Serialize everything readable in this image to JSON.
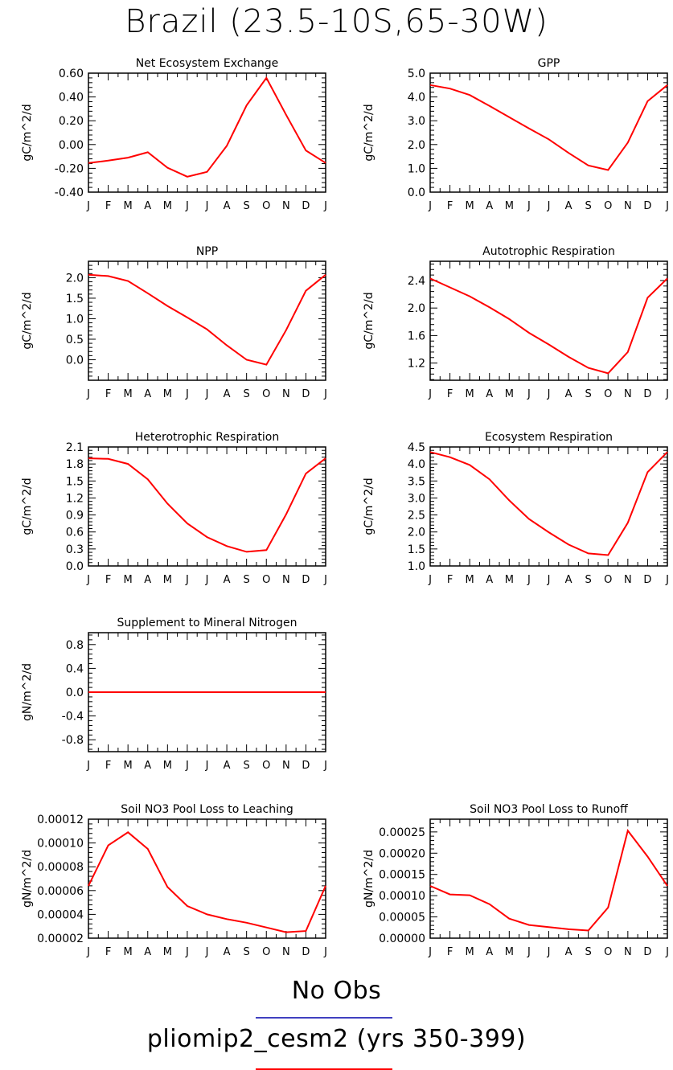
{
  "figure_title": "Brazil (23.5-10S,65-30W)",
  "legend": {
    "obs_label": "No Obs",
    "model_label": "pliomip2_cesm2 (yrs 350-399)",
    "obs_color": "#4040c0",
    "model_color": "#ff0000"
  },
  "chart_data": [
    {
      "type": "line",
      "title": "Net Ecosystem Exchange",
      "ylabel": "gC/m^2/d",
      "categories": [
        "J",
        "F",
        "M",
        "A",
        "M",
        "J",
        "J",
        "A",
        "S",
        "O",
        "N",
        "D",
        "J"
      ],
      "ylim": [
        -0.4,
        0.6
      ],
      "yticks": [
        "-0.40",
        "-0.20",
        "0.00",
        "0.20",
        "0.40",
        "0.60"
      ],
      "ytick_values": [
        -0.4,
        -0.2,
        0.0,
        0.2,
        0.4,
        0.6
      ],
      "series": [
        {
          "color": "#ff0000",
          "values": [
            -0.155,
            -0.135,
            -0.11,
            -0.065,
            -0.195,
            -0.27,
            -0.23,
            -0.01,
            0.33,
            0.56,
            0.25,
            -0.05,
            -0.155
          ]
        }
      ]
    },
    {
      "type": "line",
      "title": "GPP",
      "ylabel": "gC/m^2/d",
      "categories": [
        "J",
        "F",
        "M",
        "A",
        "M",
        "J",
        "J",
        "A",
        "S",
        "O",
        "N",
        "D",
        "J"
      ],
      "ylim": [
        0.0,
        5.0
      ],
      "yticks": [
        "0.0",
        "1.0",
        "2.0",
        "3.0",
        "4.0",
        "5.0"
      ],
      "ytick_values": [
        0,
        1,
        2,
        3,
        4,
        5
      ],
      "series": [
        {
          "color": "#ff0000",
          "values": [
            4.5,
            4.35,
            4.08,
            3.62,
            3.15,
            2.68,
            2.22,
            1.65,
            1.12,
            0.93,
            2.08,
            3.82,
            4.5
          ]
        }
      ]
    },
    {
      "type": "line",
      "title": "NPP",
      "ylabel": "gC/m^2/d",
      "categories": [
        "J",
        "F",
        "M",
        "A",
        "M",
        "J",
        "J",
        "A",
        "S",
        "O",
        "N",
        "D",
        "J"
      ],
      "ylim": [
        -0.5,
        2.4
      ],
      "yticks": [
        "0.0",
        "0.5",
        "1.0",
        "1.5",
        "2.0"
      ],
      "ytick_values": [
        0,
        0.5,
        1.0,
        1.5,
        2.0
      ],
      "series": [
        {
          "color": "#ff0000",
          "values": [
            2.07,
            2.04,
            1.92,
            1.62,
            1.31,
            1.03,
            0.74,
            0.35,
            0.0,
            -0.12,
            0.72,
            1.68,
            2.07
          ]
        }
      ]
    },
    {
      "type": "line",
      "title": "Autotrophic Respiration",
      "ylabel": "gC/m^2/d",
      "categories": [
        "J",
        "F",
        "M",
        "A",
        "M",
        "J",
        "J",
        "A",
        "S",
        "O",
        "N",
        "D",
        "J"
      ],
      "ylim": [
        0.95,
        2.68
      ],
      "yticks": [
        "1.2",
        "1.6",
        "2.0",
        "2.4"
      ],
      "ytick_values": [
        1.2,
        1.6,
        2.0,
        2.4
      ],
      "series": [
        {
          "color": "#ff0000",
          "values": [
            2.43,
            2.3,
            2.17,
            2.01,
            1.84,
            1.64,
            1.47,
            1.29,
            1.13,
            1.05,
            1.36,
            2.15,
            2.43
          ]
        }
      ]
    },
    {
      "type": "line",
      "title": "Heterotrophic Respiration",
      "ylabel": "gC/m^2/d",
      "categories": [
        "J",
        "F",
        "M",
        "A",
        "M",
        "J",
        "J",
        "A",
        "S",
        "O",
        "N",
        "D",
        "J"
      ],
      "ylim": [
        0.0,
        2.1
      ],
      "yticks": [
        "0.0",
        "0.3",
        "0.6",
        "0.9",
        "1.2",
        "1.5",
        "1.8",
        "2.1"
      ],
      "ytick_values": [
        0,
        0.3,
        0.6,
        0.9,
        1.2,
        1.5,
        1.8,
        2.1
      ],
      "series": [
        {
          "color": "#ff0000",
          "values": [
            1.9,
            1.89,
            1.8,
            1.53,
            1.1,
            0.75,
            0.51,
            0.35,
            0.25,
            0.28,
            0.91,
            1.63,
            1.9
          ]
        }
      ]
    },
    {
      "type": "line",
      "title": "Ecosystem Respiration",
      "ylabel": "gC/m^2/d",
      "categories": [
        "J",
        "F",
        "M",
        "A",
        "M",
        "J",
        "J",
        "A",
        "S",
        "O",
        "N",
        "D",
        "J"
      ],
      "ylim": [
        1.0,
        4.5
      ],
      "yticks": [
        "1.0",
        "1.5",
        "2.0",
        "2.5",
        "3.0",
        "3.5",
        "4.0",
        "4.5"
      ],
      "ytick_values": [
        1.0,
        1.5,
        2.0,
        2.5,
        3.0,
        3.5,
        4.0,
        4.5
      ],
      "series": [
        {
          "color": "#ff0000",
          "values": [
            4.35,
            4.2,
            3.97,
            3.55,
            2.93,
            2.38,
            1.99,
            1.63,
            1.37,
            1.32,
            2.27,
            3.76,
            4.35
          ]
        }
      ]
    },
    {
      "type": "line",
      "title": "Supplement to Mineral Nitrogen",
      "ylabel": "gN/m^2/d",
      "categories": [
        "J",
        "F",
        "M",
        "A",
        "M",
        "J",
        "J",
        "A",
        "S",
        "O",
        "N",
        "D",
        "J"
      ],
      "ylim": [
        -1.0,
        1.0
      ],
      "yticks": [
        "-0.8",
        "-0.4",
        "0.0",
        "0.4",
        "0.8"
      ],
      "ytick_values": [
        -0.8,
        -0.4,
        0.0,
        0.4,
        0.8
      ],
      "series": [
        {
          "color": "#ff0000",
          "values": [
            0,
            0,
            0,
            0,
            0,
            0,
            0,
            0,
            0,
            0,
            0,
            0,
            0
          ]
        }
      ]
    },
    {
      "type": "line",
      "title": "Soil NO3 Pool Loss to Leaching",
      "ylabel": "gN/m^2/d",
      "categories": [
        "J",
        "F",
        "M",
        "A",
        "M",
        "J",
        "J",
        "A",
        "S",
        "O",
        "N",
        "D",
        "J"
      ],
      "ylim": [
        2e-05,
        0.00012
      ],
      "yticks": [
        "0.00002",
        "0.00004",
        "0.00006",
        "0.00008",
        "0.00010",
        "0.00012"
      ],
      "ytick_values": [
        2e-05,
        4e-05,
        6e-05,
        8e-05,
        0.0001,
        0.00012
      ],
      "series": [
        {
          "color": "#ff0000",
          "values": [
            6.4e-05,
            9.8e-05,
            0.000109,
            9.5e-05,
            6.3e-05,
            4.7e-05,
            4e-05,
            3.6e-05,
            3.3e-05,
            2.9e-05,
            2.5e-05,
            2.6e-05,
            6.4e-05
          ]
        }
      ]
    },
    {
      "type": "line",
      "title": "Soil NO3 Pool Loss to Runoff",
      "ylabel": "gN/m^2/d",
      "categories": [
        "J",
        "F",
        "M",
        "A",
        "M",
        "J",
        "J",
        "A",
        "S",
        "O",
        "N",
        "D",
        "J"
      ],
      "ylim": [
        0.0,
        0.00028
      ],
      "yticks": [
        "0.00000",
        "0.00005",
        "0.00010",
        "0.00015",
        "0.00020",
        "0.00025"
      ],
      "ytick_values": [
        0,
        5e-05,
        0.0001,
        0.00015,
        0.0002,
        0.00025
      ],
      "series": [
        {
          "color": "#ff0000",
          "values": [
            0.000123,
            0.000103,
            0.000101,
            8e-05,
            4.6e-05,
            3.1e-05,
            2.6e-05,
            2.1e-05,
            1.8e-05,
            7.2e-05,
            0.000253,
            0.000192,
            0.000123
          ]
        }
      ]
    }
  ]
}
